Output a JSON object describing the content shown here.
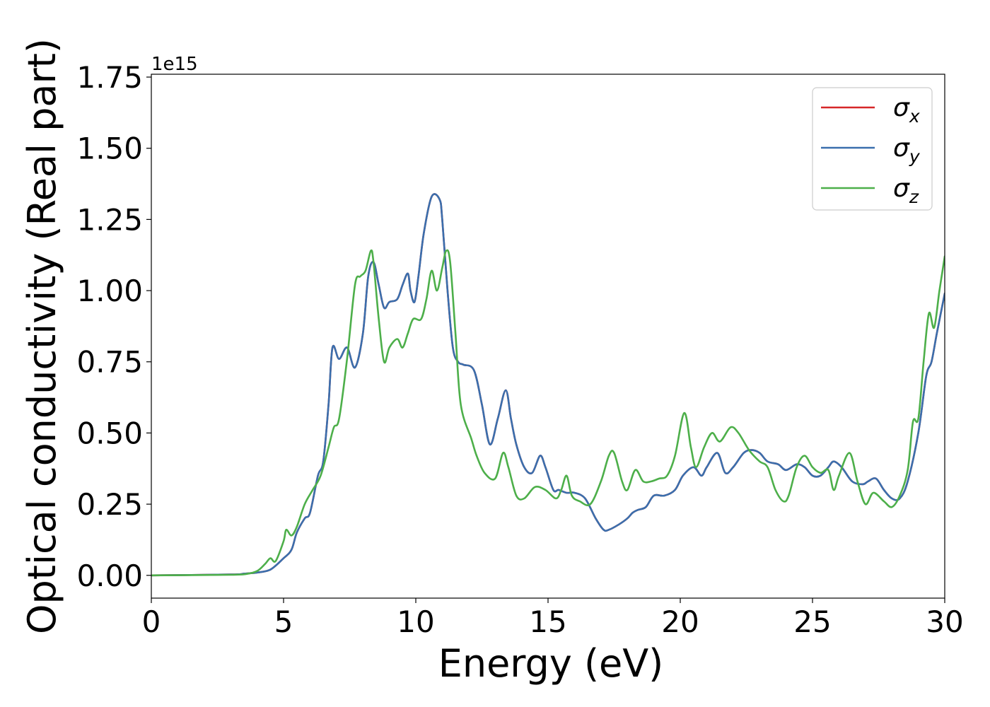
{
  "chart_data": {
    "type": "line",
    "xlabel": "Energy (eV)",
    "ylabel": "Optical conductivity (Real part)",
    "y_offset_label": "1e15",
    "xlim": [
      0,
      30
    ],
    "ylim": [
      -0.08,
      1.76
    ],
    "x_ticks": [
      "0",
      "5",
      "10",
      "15",
      "20",
      "25",
      "30"
    ],
    "y_ticks": [
      "0.00",
      "0.25",
      "0.50",
      "0.75",
      "1.00",
      "1.25",
      "1.50",
      "1.75"
    ],
    "grid": false,
    "legend_position": "top-right",
    "series": [
      {
        "name": "σx",
        "legend_main": "σ",
        "legend_sub": "x",
        "color": "#d62728",
        "x": [
          0,
          3,
          3.5,
          4,
          4.5,
          5,
          5.3,
          5.5,
          5.8,
          6,
          6.3,
          6.5,
          6.7,
          6.85,
          7.1,
          7.4,
          7.7,
          8,
          8.2,
          8.4,
          8.6,
          8.8,
          9,
          9.3,
          9.5,
          9.7,
          9.8,
          9.95,
          10.1,
          10.3,
          10.6,
          10.9,
          11,
          11.2,
          11.4,
          11.6,
          11.8,
          12.2,
          12.5,
          12.8,
          13.1,
          13.4,
          13.6,
          13.8,
          14.1,
          14.4,
          14.7,
          14.9,
          15.2,
          15.4,
          15.7,
          16,
          16.4,
          16.8,
          17.1,
          17.3,
          17.7,
          18,
          18.2,
          18.4,
          18.7,
          19,
          19.4,
          19.8,
          20.1,
          20.5,
          20.8,
          21,
          21.4,
          21.7,
          22,
          22.4,
          22.7,
          23,
          23.3,
          23.7,
          24,
          24.4,
          24.7,
          25,
          25.3,
          25.6,
          25.8,
          26.1,
          26.5,
          26.9,
          27.1,
          27.4,
          27.7,
          28,
          28.3,
          28.6,
          29,
          29.3,
          29.5,
          29.7,
          30
        ],
        "y": [
          0,
          0.003,
          0.006,
          0.01,
          0.02,
          0.06,
          0.09,
          0.15,
          0.2,
          0.22,
          0.35,
          0.4,
          0.6,
          0.8,
          0.76,
          0.8,
          0.73,
          0.85,
          1.05,
          1.1,
          1.02,
          0.94,
          0.96,
          0.97,
          1.02,
          1.06,
          1.0,
          0.96,
          1.05,
          1.2,
          1.33,
          1.32,
          1.25,
          1.0,
          0.8,
          0.75,
          0.74,
          0.72,
          0.6,
          0.46,
          0.55,
          0.65,
          0.55,
          0.46,
          0.38,
          0.36,
          0.42,
          0.38,
          0.3,
          0.3,
          0.29,
          0.29,
          0.27,
          0.2,
          0.16,
          0.16,
          0.18,
          0.2,
          0.22,
          0.23,
          0.24,
          0.28,
          0.28,
          0.3,
          0.35,
          0.38,
          0.35,
          0.38,
          0.43,
          0.36,
          0.38,
          0.43,
          0.44,
          0.43,
          0.4,
          0.39,
          0.37,
          0.39,
          0.38,
          0.35,
          0.35,
          0.38,
          0.4,
          0.38,
          0.33,
          0.32,
          0.33,
          0.34,
          0.3,
          0.27,
          0.27,
          0.33,
          0.5,
          0.7,
          0.75,
          0.85,
          0.99
        ]
      },
      {
        "name": "σy",
        "legend_main": "σ",
        "legend_sub": "y",
        "color": "#3a6fad",
        "x": [
          0,
          3,
          3.5,
          4,
          4.5,
          5,
          5.3,
          5.5,
          5.8,
          6,
          6.3,
          6.5,
          6.7,
          6.85,
          7.1,
          7.4,
          7.7,
          8,
          8.2,
          8.4,
          8.6,
          8.8,
          9,
          9.3,
          9.5,
          9.7,
          9.8,
          9.95,
          10.1,
          10.3,
          10.6,
          10.9,
          11,
          11.2,
          11.4,
          11.6,
          11.8,
          12.2,
          12.5,
          12.8,
          13.1,
          13.4,
          13.6,
          13.8,
          14.1,
          14.4,
          14.7,
          14.9,
          15.2,
          15.4,
          15.7,
          16,
          16.4,
          16.8,
          17.1,
          17.3,
          17.7,
          18,
          18.2,
          18.4,
          18.7,
          19,
          19.4,
          19.8,
          20.1,
          20.5,
          20.8,
          21,
          21.4,
          21.7,
          22,
          22.4,
          22.7,
          23,
          23.3,
          23.7,
          24,
          24.4,
          24.7,
          25,
          25.3,
          25.6,
          25.8,
          26.1,
          26.5,
          26.9,
          27.1,
          27.4,
          27.7,
          28,
          28.3,
          28.6,
          29,
          29.3,
          29.5,
          29.7,
          30
        ],
        "y": [
          0,
          0.003,
          0.006,
          0.01,
          0.02,
          0.06,
          0.09,
          0.15,
          0.2,
          0.22,
          0.35,
          0.4,
          0.6,
          0.8,
          0.76,
          0.8,
          0.73,
          0.85,
          1.05,
          1.1,
          1.02,
          0.94,
          0.96,
          0.97,
          1.02,
          1.06,
          1.0,
          0.96,
          1.05,
          1.2,
          1.33,
          1.32,
          1.25,
          1.0,
          0.8,
          0.75,
          0.74,
          0.72,
          0.6,
          0.46,
          0.55,
          0.65,
          0.55,
          0.46,
          0.38,
          0.36,
          0.42,
          0.38,
          0.3,
          0.3,
          0.29,
          0.29,
          0.27,
          0.2,
          0.16,
          0.16,
          0.18,
          0.2,
          0.22,
          0.23,
          0.24,
          0.28,
          0.28,
          0.3,
          0.35,
          0.38,
          0.35,
          0.38,
          0.43,
          0.36,
          0.38,
          0.43,
          0.44,
          0.43,
          0.4,
          0.39,
          0.37,
          0.39,
          0.38,
          0.35,
          0.35,
          0.38,
          0.4,
          0.38,
          0.33,
          0.32,
          0.33,
          0.34,
          0.3,
          0.27,
          0.27,
          0.33,
          0.5,
          0.7,
          0.75,
          0.85,
          0.99
        ]
      },
      {
        "name": "σz",
        "legend_main": "σ",
        "legend_sub": "z",
        "color": "#4daf4a",
        "x": [
          0,
          3,
          3.6,
          4,
          4.3,
          4.5,
          4.7,
          5,
          5.1,
          5.3,
          5.5,
          5.8,
          6.1,
          6.4,
          6.7,
          6.9,
          7.1,
          7.4,
          7.7,
          7.9,
          8.1,
          8.3,
          8.4,
          8.6,
          8.8,
          9,
          9.3,
          9.5,
          9.7,
          9.9,
          10.2,
          10.4,
          10.6,
          10.8,
          11,
          11.15,
          11.3,
          11.5,
          11.7,
          12.1,
          12.3,
          12.6,
          13,
          13.3,
          13.5,
          13.8,
          14.1,
          14.5,
          14.9,
          15.3,
          15.5,
          15.7,
          15.9,
          16.2,
          16.6,
          17,
          17.3,
          17.5,
          17.8,
          18,
          18.3,
          18.6,
          18.9,
          19.2,
          19.5,
          19.8,
          20.15,
          20.4,
          20.6,
          20.9,
          21.2,
          21.5,
          21.9,
          22.2,
          22.6,
          23,
          23.3,
          23.6,
          23.9,
          24.1,
          24.4,
          24.7,
          25,
          25.3,
          25.6,
          25.8,
          26,
          26.4,
          26.7,
          27,
          27.3,
          27.7,
          28,
          28.3,
          28.6,
          28.8,
          29,
          29.2,
          29.4,
          29.6,
          29.8,
          30
        ],
        "y": [
          0,
          0.002,
          0.005,
          0.015,
          0.04,
          0.06,
          0.05,
          0.12,
          0.16,
          0.14,
          0.17,
          0.25,
          0.3,
          0.35,
          0.45,
          0.52,
          0.55,
          0.76,
          1.02,
          1.05,
          1.07,
          1.14,
          1.1,
          0.9,
          0.75,
          0.8,
          0.83,
          0.8,
          0.85,
          0.9,
          0.9,
          0.97,
          1.07,
          1.0,
          1.08,
          1.14,
          1.1,
          0.85,
          0.6,
          0.48,
          0.42,
          0.36,
          0.34,
          0.43,
          0.38,
          0.28,
          0.27,
          0.31,
          0.3,
          0.27,
          0.3,
          0.35,
          0.28,
          0.26,
          0.25,
          0.33,
          0.42,
          0.43,
          0.33,
          0.3,
          0.37,
          0.33,
          0.33,
          0.34,
          0.35,
          0.42,
          0.57,
          0.45,
          0.38,
          0.45,
          0.5,
          0.47,
          0.52,
          0.5,
          0.44,
          0.4,
          0.38,
          0.3,
          0.26,
          0.28,
          0.38,
          0.42,
          0.38,
          0.36,
          0.37,
          0.3,
          0.35,
          0.43,
          0.33,
          0.25,
          0.29,
          0.26,
          0.24,
          0.28,
          0.37,
          0.54,
          0.55,
          0.75,
          0.92,
          0.87,
          1.0,
          1.12
        ]
      }
    ]
  }
}
